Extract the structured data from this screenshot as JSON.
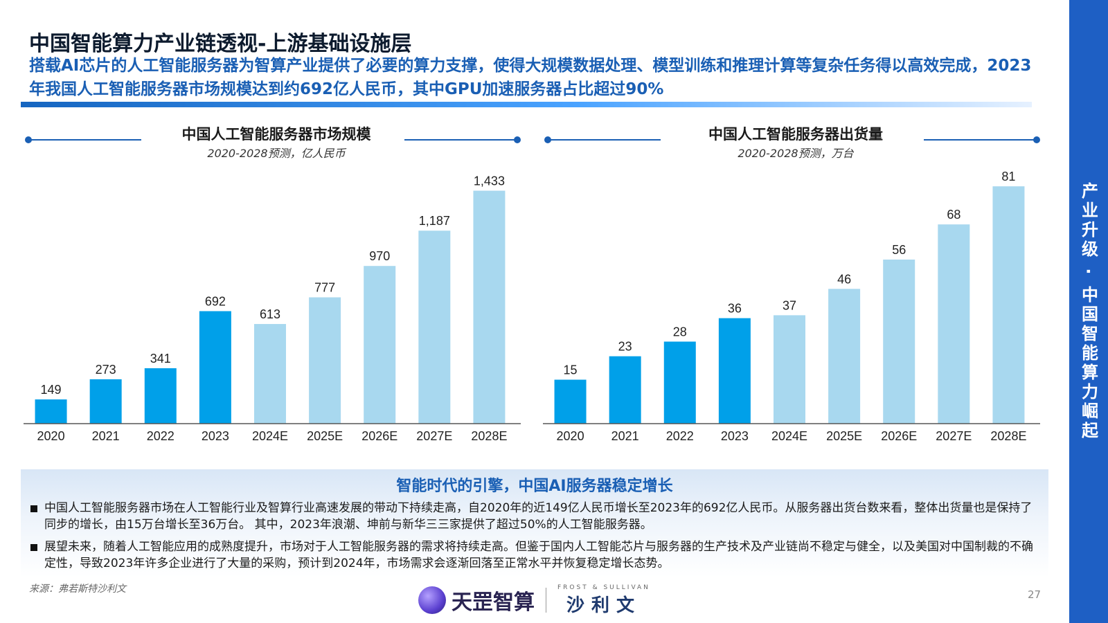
{
  "page": {
    "title": "中国智能算力产业链透视-上游基础设施层",
    "subtitle": "搭载AI芯片的人工智能服务器为智算产业提供了必要的算力支撑，使得大规模数据处理、模型训练和推理计算等复杂任务得以高效完成，2023年我国人工智能服务器市场规模达到约692亿人民币，其中GPU加速服务器占比超过90%",
    "side_label": "产业升级 · 中国智能算力崛起",
    "page_number": "27"
  },
  "colors": {
    "actual": "#00a0e9",
    "forecast": "#a8d8ef",
    "accent": "#1a5fb4",
    "band": "#1e5fc4"
  },
  "chart_data": [
    {
      "type": "bar",
      "title": "中国人工智能服务器市场规模",
      "subtitle": "2020-2028预测，亿人民币",
      "categories": [
        "2020",
        "2021",
        "2022",
        "2023",
        "2024E",
        "2025E",
        "2026E",
        "2027E",
        "2028E"
      ],
      "values": [
        149,
        273,
        341,
        692,
        613,
        777,
        970,
        1187,
        1433
      ],
      "value_labels": [
        "149",
        "273",
        "341",
        "692",
        "613",
        "777",
        "970",
        "1,187",
        "1,433"
      ],
      "forecast_from_index": 4,
      "ylim": [
        0,
        1550
      ],
      "grid": false,
      "xlabel": "",
      "ylabel": ""
    },
    {
      "type": "bar",
      "title": "中国人工智能服务器出货量",
      "subtitle": "2020-2028预测，万台",
      "categories": [
        "2020",
        "2021",
        "2022",
        "2023",
        "2024E",
        "2025E",
        "2026E",
        "2027E",
        "2028E"
      ],
      "values": [
        15,
        23,
        28,
        36,
        37,
        46,
        56,
        68,
        81
      ],
      "value_labels": [
        "15",
        "23",
        "28",
        "36",
        "37",
        "46",
        "56",
        "68",
        "81"
      ],
      "forecast_from_index": 4,
      "ylim": [
        0,
        86
      ],
      "grid": false,
      "xlabel": "",
      "ylabel": ""
    }
  ],
  "summary": {
    "heading": "智能时代的引擎，中国AI服务器稳定增长",
    "bullets": [
      "中国人工智能服务器市场在人工智能行业及智算行业高速发展的带动下持续走高，自2020年的近149亿人民币增长至2023年的692亿人民币。从服务器出货台数来看，整体出货量也是保持了同步的增长，由15万台增长至36万台。 其中，2023年浪潮、坤前与新华三三家提供了超过50%的人工智能服务器。",
      "展望未来，随着人工智能应用的成熟度提升，市场对于人工智能服务器的需求将持续走高。但鉴于国内人工智能芯片与服务器的生产技术及产业链尚不稳定与健全，以及美国对中国制裁的不确定性，导致2023年许多企业进行了大量的采购，预计到2024年，市场需求会逐渐回落至正常水平并恢复稳定增长态势。"
    ]
  },
  "footer": {
    "source": "来源：弗若斯特沙利文",
    "logo_left": "天罡智算",
    "logo_right_small": "FROST & SULLIVAN",
    "logo_right_cn": "沙利文"
  }
}
